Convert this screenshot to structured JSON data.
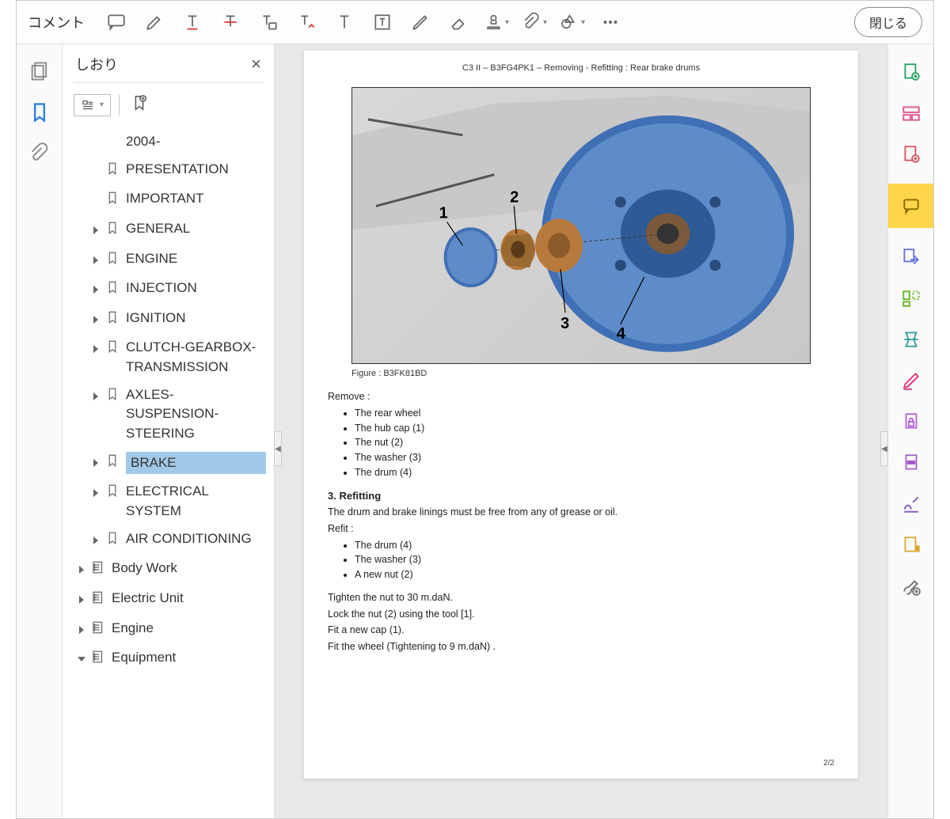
{
  "toolbar": {
    "label": "コメント",
    "close": "閉じる"
  },
  "bookmarks": {
    "title": "しおり",
    "items": [
      {
        "label": "2004-",
        "indent": 2,
        "chevron": false,
        "icon": "none"
      },
      {
        "label": "PRESENTATION",
        "indent": 2,
        "chevron": false,
        "icon": "bookmark"
      },
      {
        "label": "IMPORTANT",
        "indent": 2,
        "chevron": false,
        "icon": "bookmark"
      },
      {
        "label": "GENERAL",
        "indent": 2,
        "chevron": true,
        "icon": "bookmark"
      },
      {
        "label": "ENGINE",
        "indent": 2,
        "chevron": true,
        "icon": "bookmark"
      },
      {
        "label": "INJECTION",
        "indent": 2,
        "chevron": true,
        "icon": "bookmark"
      },
      {
        "label": "IGNITION",
        "indent": 2,
        "chevron": true,
        "icon": "bookmark"
      },
      {
        "label": "CLUTCH-GEARBOX-TRANSMISSION",
        "indent": 2,
        "chevron": true,
        "icon": "bookmark"
      },
      {
        "label": "AXLES-SUSPENSION-STEERING",
        "indent": 2,
        "chevron": true,
        "icon": "bookmark"
      },
      {
        "label": "BRAKE",
        "indent": 2,
        "chevron": true,
        "icon": "bookmark",
        "selected": true
      },
      {
        "label": "ELECTRICAL SYSTEM",
        "indent": 2,
        "chevron": true,
        "icon": "bookmark"
      },
      {
        "label": "AIR CONDITIONING",
        "indent": 2,
        "chevron": true,
        "icon": "bookmark"
      },
      {
        "label": "Body Work",
        "indent": 1,
        "chevron": true,
        "icon": "tree"
      },
      {
        "label": "Electric Unit",
        "indent": 1,
        "chevron": true,
        "icon": "tree"
      },
      {
        "label": "Engine",
        "indent": 1,
        "chevron": true,
        "icon": "tree"
      },
      {
        "label": "Equipment",
        "indent": 1,
        "chevron": true,
        "chevronDown": true,
        "icon": "tree"
      }
    ]
  },
  "document": {
    "header": "C3 II – B3FG4PK1 – Removing - Refitting : Rear brake drums",
    "figureCaption": "Figure : B3FK81BD",
    "removeTitle": "Remove :",
    "removeItems": [
      "The rear wheel",
      "The hub cap (1)",
      "The nut (2)",
      "The washer (3)",
      "The drum (4)"
    ],
    "refitHeading": "3. Refitting",
    "refitIntro": "The drum and brake linings must be free from any of grease or oil.",
    "refitLabel": "Refit :",
    "refitItems": [
      "The drum (4)",
      "The washer (3)",
      "A new nut (2)"
    ],
    "tighten1": "Tighten the nut to 30 m.daN.",
    "tighten2": "Lock the nut (2) using the tool [1].",
    "tighten3": "Fit a new cap (1).",
    "tighten4": "Fit the wheel (Tightening to 9 m.daN) .",
    "pageNum": "2/2",
    "callouts": [
      "1",
      "2",
      "3",
      "4"
    ]
  },
  "colors": {
    "drumBlue": "#3f6fb5",
    "drumBlueLight": "#5e8cc8",
    "washerBrown": "#b87a3c",
    "selectedBg": "#a3c9e8",
    "activeYellow": "#ffd54a"
  }
}
